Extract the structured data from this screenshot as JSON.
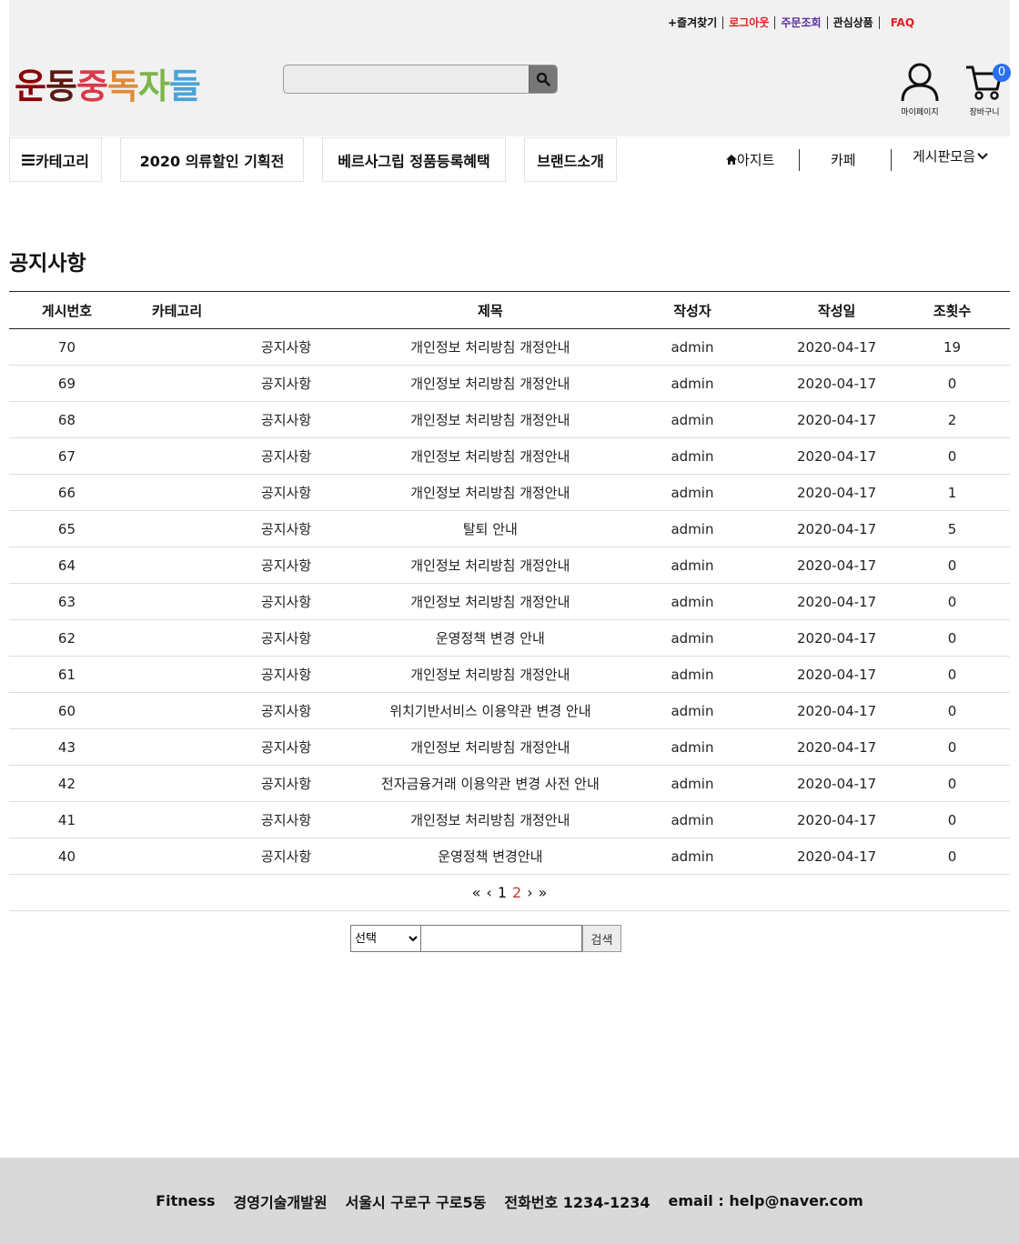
{
  "top_links": {
    "favorites": "+즐겨찾기",
    "logout": "로그아웃",
    "orders": "주문조회",
    "wishlist": "관심상품",
    "faq": "FAQ"
  },
  "logo": {
    "chars": [
      "운",
      "동",
      "중",
      "독",
      "자",
      "들"
    ],
    "colors": [
      "#8b0000",
      "#5a1a10",
      "#d83a4a",
      "#e08a3a",
      "#7ab648",
      "#4aa3d8"
    ]
  },
  "search": {
    "value": "",
    "icon": "search-icon"
  },
  "mypage": {
    "label": "마이페이지",
    "icon": "person-icon"
  },
  "cart": {
    "label": "장바구니",
    "count": "0",
    "icon": "cart-icon"
  },
  "nav": {
    "category": "카테고리",
    "promo": "2020 의류할인 기획전",
    "versa": "베르사그립 정품등록혜택",
    "brand": "브랜드소개",
    "hideout": "아지트",
    "cafe": "카페",
    "boards": "게시판모음"
  },
  "page_title": "공지사항",
  "table": {
    "headers": {
      "no": "게시번호",
      "category": "카테고리",
      "title": "제목",
      "author": "작성자",
      "date": "작성일",
      "views": "조횟수"
    },
    "rows": [
      {
        "no": "70",
        "category": "공지사항",
        "title": "개인정보 처리방침 개정안내",
        "author": "admin",
        "date": "2020-04-17",
        "views": "19"
      },
      {
        "no": "69",
        "category": "공지사항",
        "title": "개인정보 처리방침 개정안내",
        "author": "admin",
        "date": "2020-04-17",
        "views": "0"
      },
      {
        "no": "68",
        "category": "공지사항",
        "title": "개인정보 처리방침 개정안내",
        "author": "admin",
        "date": "2020-04-17",
        "views": "2"
      },
      {
        "no": "67",
        "category": "공지사항",
        "title": "개인정보 처리방침 개정안내",
        "author": "admin",
        "date": "2020-04-17",
        "views": "0"
      },
      {
        "no": "66",
        "category": "공지사항",
        "title": "개인정보 처리방침 개정안내",
        "author": "admin",
        "date": "2020-04-17",
        "views": "1"
      },
      {
        "no": "65",
        "category": "공지사항",
        "title": "탈퇴 안내",
        "author": "admin",
        "date": "2020-04-17",
        "views": "5"
      },
      {
        "no": "64",
        "category": "공지사항",
        "title": "개인정보 처리방침 개정안내",
        "author": "admin",
        "date": "2020-04-17",
        "views": "0"
      },
      {
        "no": "63",
        "category": "공지사항",
        "title": "개인정보 처리방침 개정안내",
        "author": "admin",
        "date": "2020-04-17",
        "views": "0"
      },
      {
        "no": "62",
        "category": "공지사항",
        "title": "운영정책 변경 안내",
        "author": "admin",
        "date": "2020-04-17",
        "views": "0"
      },
      {
        "no": "61",
        "category": "공지사항",
        "title": "개인정보 처리방침 개정안내",
        "author": "admin",
        "date": "2020-04-17",
        "views": "0"
      },
      {
        "no": "60",
        "category": "공지사항",
        "title": "위치기반서비스 이용약관 변경 안내",
        "author": "admin",
        "date": "2020-04-17",
        "views": "0"
      },
      {
        "no": "43",
        "category": "공지사항",
        "title": "개인정보 처리방침 개정안내",
        "author": "admin",
        "date": "2020-04-17",
        "views": "0"
      },
      {
        "no": "42",
        "category": "공지사항",
        "title": "전자금융거래 이용약관 변경 사전 안내",
        "author": "admin",
        "date": "2020-04-17",
        "views": "0"
      },
      {
        "no": "41",
        "category": "공지사항",
        "title": "개인정보 처리방침 개정안내",
        "author": "admin",
        "date": "2020-04-17",
        "views": "0"
      },
      {
        "no": "40",
        "category": "공지사항",
        "title": "운영정책 변경안내",
        "author": "admin",
        "date": "2020-04-17",
        "views": "0"
      }
    ]
  },
  "pager": {
    "first": "«",
    "prev": "‹",
    "pages": [
      "1",
      "2"
    ],
    "current": "2",
    "next": "›",
    "last": "»"
  },
  "board_search": {
    "select_value": "선택",
    "query": "",
    "button": "검색"
  },
  "footer": {
    "company": "Fitness",
    "org": "경영기술개발원",
    "address": "서울시 구로구 구로5동",
    "phone": "전화번호 1234-1234",
    "email": "email : help@naver.com"
  }
}
